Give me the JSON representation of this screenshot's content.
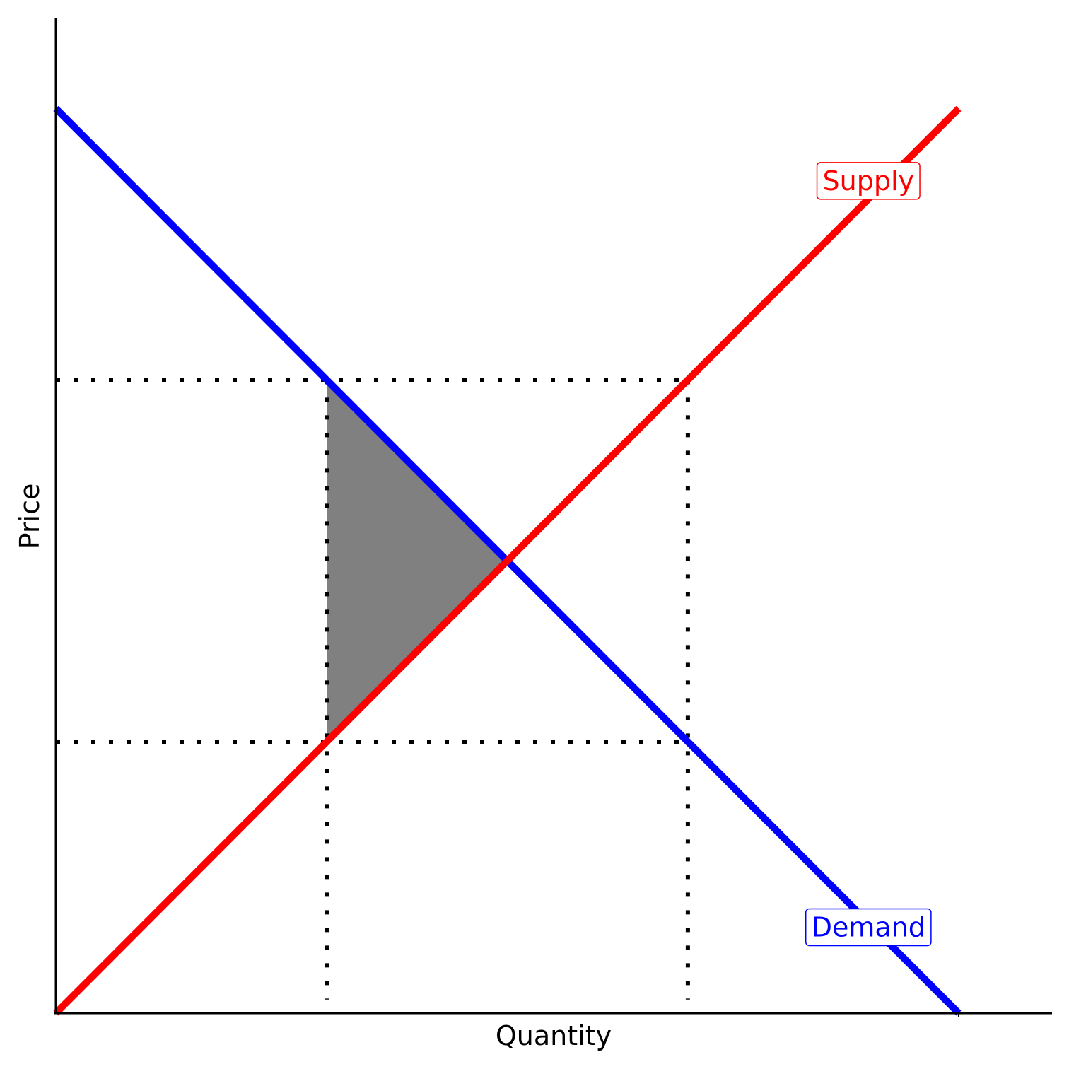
{
  "chart_data": {
    "type": "line",
    "title": "",
    "xlabel": "Quantity",
    "ylabel": "Price",
    "xlim": [
      0,
      10
    ],
    "ylim": [
      0,
      11
    ],
    "grid": false,
    "series": [
      {
        "name": "Supply",
        "color": "#ff0000",
        "x": [
          0,
          10
        ],
        "y": [
          0,
          10
        ]
      },
      {
        "name": "Demand",
        "color": "#0000ff",
        "x": [
          0,
          10
        ],
        "y": [
          10,
          0
        ]
      }
    ],
    "labels": [
      {
        "series": "Supply",
        "text": "Supply",
        "x": 9,
        "y": 9.2
      },
      {
        "series": "Demand",
        "text": "Demand",
        "x": 9,
        "y": 0.95
      }
    ],
    "reference_lines": {
      "color": "#000000",
      "style": "dotted",
      "horizontal": [
        {
          "y": 7,
          "x_from": 0,
          "x_to": 7
        },
        {
          "y": 3,
          "x_from": 0,
          "x_to": 7
        }
      ],
      "vertical": [
        {
          "x": 3,
          "y_from": 0.15,
          "y_to": 7
        },
        {
          "x": 7,
          "y_from": 0.15,
          "y_to": 7
        }
      ]
    },
    "shaded_area": {
      "color": "#808080",
      "points": [
        [
          3,
          7
        ],
        [
          5,
          5
        ],
        [
          3,
          3
        ]
      ]
    }
  }
}
